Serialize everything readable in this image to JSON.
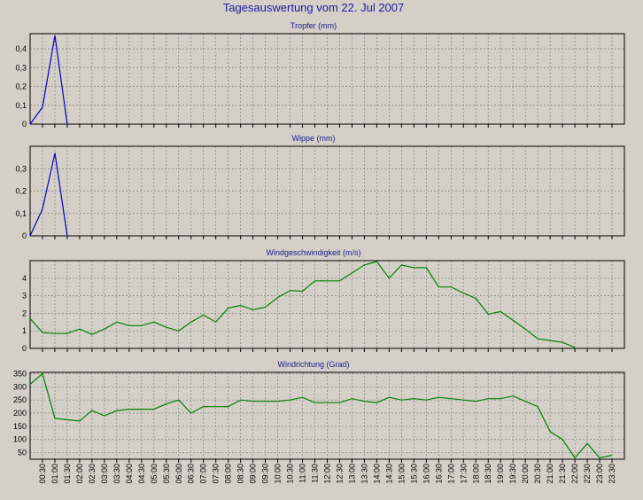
{
  "title": "Tagesauswertung vom 22. Jul 2007",
  "colors": {
    "background": "#d4d0c8",
    "grid": "#808080",
    "axis": "#000000",
    "title": "#1a1aa6"
  },
  "x_labels": [
    "00:30",
    "01:00",
    "01:30",
    "02:00",
    "02:30",
    "03:00",
    "03:30",
    "04:00",
    "04:30",
    "05:00",
    "05:30",
    "06:00",
    "06:30",
    "07:00",
    "07:30",
    "08:00",
    "08:30",
    "09:00",
    "09:30",
    "10:00",
    "10:30",
    "11:00",
    "11:30",
    "12:00",
    "12:30",
    "13:00",
    "13:30",
    "14:00",
    "14:30",
    "15:00",
    "15:30",
    "16:00",
    "16:30",
    "17:00",
    "17:30",
    "18:00",
    "18:30",
    "19:00",
    "19:30",
    "20:00",
    "20:30",
    "21:00",
    "21:30",
    "22:00",
    "22:30",
    "23:00",
    "23:30"
  ],
  "chart_data": [
    {
      "type": "line",
      "title": "Tropfer (mm)",
      "color": "#0000cc",
      "grid": true,
      "yticks": [
        0,
        0.1,
        0.2,
        0.3,
        0.4
      ],
      "ytick_labels": [
        "0",
        "0,1",
        "0,2",
        "0,3",
        "0,4"
      ],
      "ylim": [
        0,
        0.48
      ],
      "x": [
        "00:00",
        "00:30",
        "01:00",
        "01:30"
      ],
      "values": [
        0,
        0.09,
        0.47,
        0
      ]
    },
    {
      "type": "line",
      "title": "Wippe (mm)",
      "color": "#0000cc",
      "grid": true,
      "yticks": [
        0,
        0.1,
        0.2,
        0.3
      ],
      "ytick_labels": [
        "0",
        "0,1",
        "0,2",
        "0,3"
      ],
      "ylim": [
        0,
        0.4
      ],
      "x": [
        "00:00",
        "00:30",
        "01:00",
        "01:30"
      ],
      "values": [
        0,
        0.12,
        0.37,
        0
      ]
    },
    {
      "type": "line",
      "title": "Windgeschwindigkeit (m/s)",
      "color": "#008000",
      "grid": true,
      "yticks": [
        0,
        1,
        2,
        3,
        4
      ],
      "ytick_labels": [
        "0",
        "1",
        "2",
        "3",
        "4"
      ],
      "ylim": [
        0,
        5
      ],
      "x": [
        "00:00",
        "00:30",
        "01:00",
        "01:30",
        "02:00",
        "02:30",
        "03:00",
        "03:30",
        "04:00",
        "04:30",
        "05:00",
        "05:30",
        "06:00",
        "06:30",
        "07:00",
        "07:30",
        "08:00",
        "08:30",
        "09:00",
        "09:30",
        "10:00",
        "10:30",
        "11:00",
        "11:30",
        "12:00",
        "12:30",
        "13:00",
        "13:30",
        "14:00",
        "14:30",
        "15:00",
        "15:30",
        "16:00",
        "16:30",
        "17:00",
        "17:30",
        "18:00",
        "18:30",
        "19:00",
        "19:30",
        "20:00",
        "20:30",
        "21:00",
        "21:30",
        "22:00"
      ],
      "values": [
        1.7,
        0.9,
        0.85,
        0.85,
        1.1,
        0.8,
        1.1,
        1.5,
        1.3,
        1.3,
        1.5,
        1.2,
        1.0,
        1.5,
        1.9,
        1.5,
        2.3,
        2.45,
        2.2,
        2.35,
        2.9,
        3.3,
        3.25,
        3.85,
        3.85,
        3.85,
        4.3,
        4.75,
        4.95,
        4.0,
        4.75,
        4.6,
        4.6,
        3.5,
        3.5,
        3.15,
        2.85,
        1.95,
        2.1,
        1.6,
        1.1,
        0.55,
        0.45,
        0.35,
        0.05
      ]
    },
    {
      "type": "line",
      "title": "Windrichtung (Grad)",
      "color": "#008000",
      "grid": true,
      "yticks": [
        50,
        100,
        150,
        200,
        250,
        300,
        350
      ],
      "ytick_labels": [
        "50",
        "100",
        "150",
        "200",
        "250",
        "300",
        "350"
      ],
      "ylim": [
        25,
        355
      ],
      "x": [
        "00:00",
        "00:30",
        "01:00",
        "01:30",
        "02:00",
        "02:30",
        "03:00",
        "03:30",
        "04:00",
        "04:30",
        "05:00",
        "05:30",
        "06:00",
        "06:30",
        "07:00",
        "07:30",
        "08:00",
        "08:30",
        "09:00",
        "09:30",
        "10:00",
        "10:30",
        "11:00",
        "11:30",
        "12:00",
        "12:30",
        "13:00",
        "13:30",
        "14:00",
        "14:30",
        "15:00",
        "15:30",
        "16:00",
        "16:30",
        "17:00",
        "17:30",
        "18:00",
        "18:30",
        "19:00",
        "19:30",
        "20:00",
        "20:30",
        "21:00",
        "21:30",
        "22:00",
        "22:30",
        "23:00",
        "23:30"
      ],
      "values": [
        310,
        350,
        180,
        175,
        170,
        210,
        190,
        210,
        215,
        215,
        215,
        235,
        250,
        200,
        225,
        225,
        225,
        250,
        245,
        245,
        245,
        250,
        260,
        240,
        240,
        240,
        255,
        245,
        240,
        260,
        250,
        255,
        250,
        260,
        255,
        250,
        245,
        255,
        255,
        265,
        245,
        225,
        130,
        100,
        30,
        85,
        30,
        40
      ]
    }
  ]
}
